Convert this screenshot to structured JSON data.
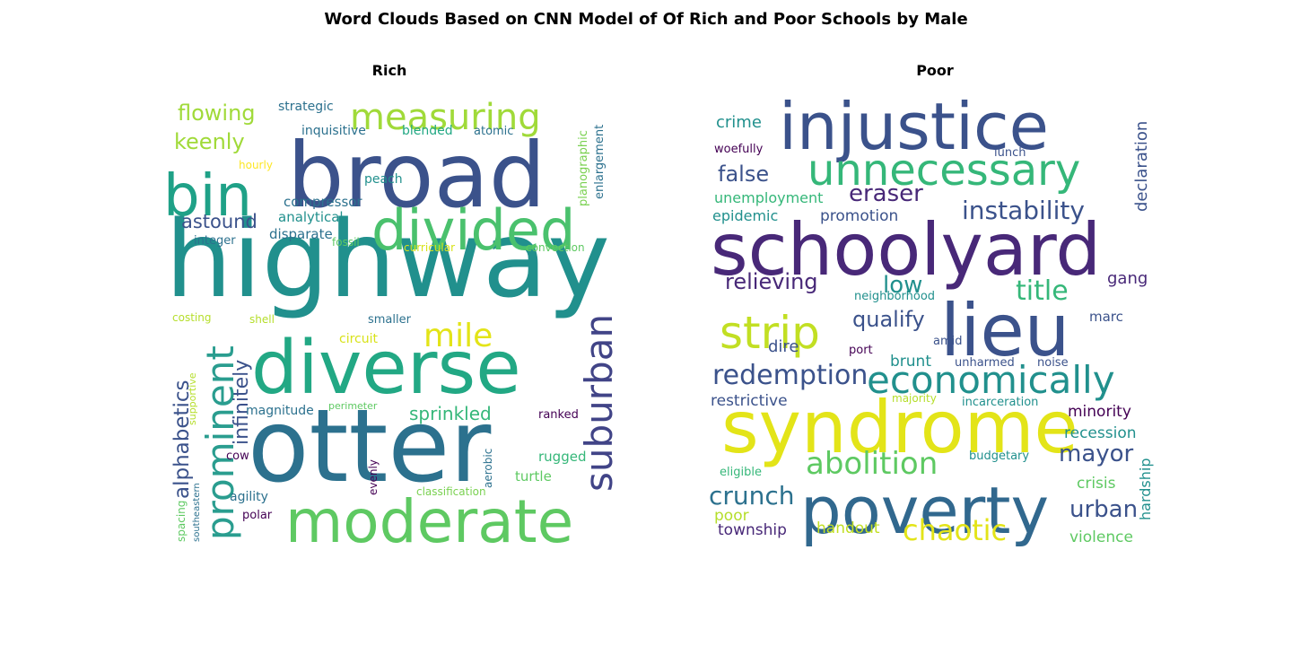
{
  "title": "Word Clouds Based on CNN Model of Of Rich and Poor Schools by Male",
  "chart_data": [
    {
      "type": "wordcloud",
      "title": "Rich",
      "words": [
        {
          "text": "highway",
          "weight": 100,
          "color": "#21908d",
          "rotation": 0
        },
        {
          "text": "otter",
          "weight": 92,
          "color": "#2c718e",
          "rotation": 0
        },
        {
          "text": "broad",
          "weight": 88,
          "color": "#3b528b",
          "rotation": 0
        },
        {
          "text": "diverse",
          "weight": 76,
          "color": "#22a884",
          "rotation": 0
        },
        {
          "text": "moderate",
          "weight": 60,
          "color": "#5ec962",
          "rotation": 0
        },
        {
          "text": "bin",
          "weight": 58,
          "color": "#1fa187",
          "rotation": 0
        },
        {
          "text": "divided",
          "weight": 56,
          "color": "#4ac16d",
          "rotation": 0
        },
        {
          "text": "suburban",
          "weight": 42,
          "color": "#414487",
          "rotation": -90
        },
        {
          "text": "prominent",
          "weight": 40,
          "color": "#2a9d8f",
          "rotation": -90
        },
        {
          "text": "measuring",
          "weight": 38,
          "color": "#a0da39",
          "rotation": 0
        },
        {
          "text": "mile",
          "weight": 32,
          "color": "#e3e418",
          "rotation": 0
        },
        {
          "text": "alphabetics",
          "weight": 24,
          "color": "#3b528b",
          "rotation": -90
        },
        {
          "text": "flowing",
          "weight": 22,
          "color": "#a0da39",
          "rotation": 0
        },
        {
          "text": "keenly",
          "weight": 22,
          "color": "#a0da39",
          "rotation": 0
        },
        {
          "text": "infinitely",
          "weight": 22,
          "color": "#3b528b",
          "rotation": -90
        },
        {
          "text": "astound",
          "weight": 19,
          "color": "#3b528b",
          "rotation": 0
        },
        {
          "text": "sprinkled",
          "weight": 19,
          "color": "#35b779",
          "rotation": 0
        },
        {
          "text": "compressor",
          "weight": 14,
          "color": "#2c718e",
          "rotation": 0
        },
        {
          "text": "analytical",
          "weight": 14,
          "color": "#21908d",
          "rotation": 0
        },
        {
          "text": "disparate",
          "weight": 14,
          "color": "#2c718e",
          "rotation": 0
        },
        {
          "text": "magnitude",
          "weight": 14,
          "color": "#2c718e",
          "rotation": 0
        },
        {
          "text": "rugged",
          "weight": 14,
          "color": "#35b779",
          "rotation": 0
        },
        {
          "text": "turtle",
          "weight": 14,
          "color": "#5ec962",
          "rotation": 0
        },
        {
          "text": "strategic",
          "weight": 13,
          "color": "#2c718e",
          "rotation": 0
        },
        {
          "text": "inquisitive",
          "weight": 13,
          "color": "#2c718e",
          "rotation": 0
        },
        {
          "text": "blended",
          "weight": 13,
          "color": "#22a884",
          "rotation": 0
        },
        {
          "text": "atomic",
          "weight": 12,
          "color": "#2c718e",
          "rotation": 0
        },
        {
          "text": "planographic",
          "weight": 12,
          "color": "#7ad151",
          "rotation": -90
        },
        {
          "text": "enlargement",
          "weight": 12,
          "color": "#2c718e",
          "rotation": -90
        },
        {
          "text": "hourly",
          "weight": 11,
          "color": "#fde725",
          "rotation": 0
        },
        {
          "text": "peach",
          "weight": 12,
          "color": "#21908d",
          "rotation": 0
        },
        {
          "text": "integer",
          "weight": 12,
          "color": "#2c718e",
          "rotation": 0
        },
        {
          "text": "fossil",
          "weight": 11,
          "color": "#5ec962",
          "rotation": 0
        },
        {
          "text": "curricular",
          "weight": 11,
          "color": "#d8e219",
          "rotation": 0
        },
        {
          "text": "convection",
          "weight": 11,
          "color": "#5ec962",
          "rotation": 0
        },
        {
          "text": "costing",
          "weight": 11,
          "color": "#b5de2b",
          "rotation": 0
        },
        {
          "text": "shell",
          "weight": 11,
          "color": "#b5de2b",
          "rotation": 0
        },
        {
          "text": "smaller",
          "weight": 12,
          "color": "#2c718e",
          "rotation": 0
        },
        {
          "text": "circuit",
          "weight": 13,
          "color": "#d8e219",
          "rotation": 0
        },
        {
          "text": "supportive",
          "weight": 11,
          "color": "#b5de2b",
          "rotation": -90
        },
        {
          "text": "perimeter",
          "weight": 10,
          "color": "#5ec962",
          "rotation": 0
        },
        {
          "text": "ranked",
          "weight": 12,
          "color": "#440154",
          "rotation": 0
        },
        {
          "text": "cow",
          "weight": 12,
          "color": "#440154",
          "rotation": 0
        },
        {
          "text": "evenly",
          "weight": 11,
          "color": "#440154",
          "rotation": -90
        },
        {
          "text": "aerobic",
          "weight": 11,
          "color": "#2c718e",
          "rotation": -90
        },
        {
          "text": "classification",
          "weight": 11,
          "color": "#7ad151",
          "rotation": 0
        },
        {
          "text": "agility",
          "weight": 13,
          "color": "#2c718e",
          "rotation": 0
        },
        {
          "text": "polar",
          "weight": 12,
          "color": "#440154",
          "rotation": 0
        },
        {
          "text": "southeastern",
          "weight": 10,
          "color": "#2c718e",
          "rotation": -90
        },
        {
          "text": "spacing",
          "weight": 11,
          "color": "#5ec962",
          "rotation": -90
        }
      ]
    },
    {
      "type": "wordcloud",
      "title": "Poor",
      "words": [
        {
          "text": "syndrome",
          "weight": 100,
          "color": "#e3e418",
          "rotation": 0
        },
        {
          "text": "schoolyard",
          "weight": 92,
          "color": "#482878",
          "rotation": 0
        },
        {
          "text": "lieu",
          "weight": 88,
          "color": "#3b528b",
          "rotation": 0
        },
        {
          "text": "injustice",
          "weight": 86,
          "color": "#3b528b",
          "rotation": 0
        },
        {
          "text": "poverty",
          "weight": 84,
          "color": "#31688e",
          "rotation": 0
        },
        {
          "text": "unnecessary",
          "weight": 60,
          "color": "#35b779",
          "rotation": 0
        },
        {
          "text": "strip",
          "weight": 58,
          "color": "#c2df23",
          "rotation": 0
        },
        {
          "text": "economically",
          "weight": 48,
          "color": "#21908d",
          "rotation": 0
        },
        {
          "text": "abolition",
          "weight": 40,
          "color": "#5ec962",
          "rotation": 0
        },
        {
          "text": "redemption",
          "weight": 36,
          "color": "#3b528b",
          "rotation": 0
        },
        {
          "text": "chaotic",
          "weight": 36,
          "color": "#e3e418",
          "rotation": 0
        },
        {
          "text": "instability",
          "weight": 32,
          "color": "#3b528b",
          "rotation": 0
        },
        {
          "text": "title",
          "weight": 32,
          "color": "#35b779",
          "rotation": 0
        },
        {
          "text": "crunch",
          "weight": 30,
          "color": "#2c718e",
          "rotation": 0
        },
        {
          "text": "eraser",
          "weight": 28,
          "color": "#482878",
          "rotation": 0
        },
        {
          "text": "low",
          "weight": 28,
          "color": "#21908d",
          "rotation": 0
        },
        {
          "text": "urban",
          "weight": 28,
          "color": "#3b528b",
          "rotation": 0
        },
        {
          "text": "mayor",
          "weight": 28,
          "color": "#3b528b",
          "rotation": 0
        },
        {
          "text": "relieving",
          "weight": 26,
          "color": "#482878",
          "rotation": 0
        },
        {
          "text": "qualify",
          "weight": 26,
          "color": "#3b528b",
          "rotation": 0
        },
        {
          "text": "false",
          "weight": 26,
          "color": "#3b528b",
          "rotation": 0
        },
        {
          "text": "declaration",
          "weight": 20,
          "color": "#3b528b",
          "rotation": -90
        },
        {
          "text": "crime",
          "weight": 18,
          "color": "#21908d",
          "rotation": 0
        },
        {
          "text": "unemployment",
          "weight": 18,
          "color": "#35b779",
          "rotation": 0
        },
        {
          "text": "epidemic",
          "weight": 18,
          "color": "#21908d",
          "rotation": 0
        },
        {
          "text": "promotion",
          "weight": 18,
          "color": "#3b528b",
          "rotation": 0
        },
        {
          "text": "gang",
          "weight": 18,
          "color": "#482878",
          "rotation": 0
        },
        {
          "text": "dire",
          "weight": 18,
          "color": "#3b528b",
          "rotation": 0
        },
        {
          "text": "restrictive",
          "weight": 17,
          "color": "#3b528b",
          "rotation": 0
        },
        {
          "text": "minority",
          "weight": 17,
          "color": "#440154",
          "rotation": 0
        },
        {
          "text": "recession",
          "weight": 17,
          "color": "#21908d",
          "rotation": 0
        },
        {
          "text": "crisis",
          "weight": 17,
          "color": "#5ec962",
          "rotation": 0
        },
        {
          "text": "hardship",
          "weight": 16,
          "color": "#21908d",
          "rotation": -90
        },
        {
          "text": "violence",
          "weight": 17,
          "color": "#5ec962",
          "rotation": 0
        },
        {
          "text": "township",
          "weight": 17,
          "color": "#482878",
          "rotation": 0
        },
        {
          "text": "poor",
          "weight": 17,
          "color": "#b5de2b",
          "rotation": 0
        },
        {
          "text": "handout",
          "weight": 17,
          "color": "#c2df23",
          "rotation": 0
        },
        {
          "text": "brunt",
          "weight": 16,
          "color": "#21908d",
          "rotation": 0
        },
        {
          "text": "marc",
          "weight": 14,
          "color": "#3b528b",
          "rotation": 0
        },
        {
          "text": "woefully",
          "weight": 12,
          "color": "#440154",
          "rotation": 0
        },
        {
          "text": "lunch",
          "weight": 12,
          "color": "#3b528b",
          "rotation": 0
        },
        {
          "text": "neighborhood",
          "weight": 12,
          "color": "#21908d",
          "rotation": 0
        },
        {
          "text": "port",
          "weight": 12,
          "color": "#440154",
          "rotation": 0
        },
        {
          "text": "amid",
          "weight": 12,
          "color": "#3b528b",
          "rotation": 0
        },
        {
          "text": "unharmed",
          "weight": 12,
          "color": "#3b528b",
          "rotation": 0
        },
        {
          "text": "noise",
          "weight": 12,
          "color": "#3b528b",
          "rotation": 0
        },
        {
          "text": "majority",
          "weight": 12,
          "color": "#b5de2b",
          "rotation": 0
        },
        {
          "text": "incarceration",
          "weight": 12,
          "color": "#21908d",
          "rotation": 0
        },
        {
          "text": "budgetary",
          "weight": 12,
          "color": "#21908d",
          "rotation": 0
        },
        {
          "text": "eligible",
          "weight": 12,
          "color": "#35b779",
          "rotation": 0
        }
      ]
    }
  ]
}
